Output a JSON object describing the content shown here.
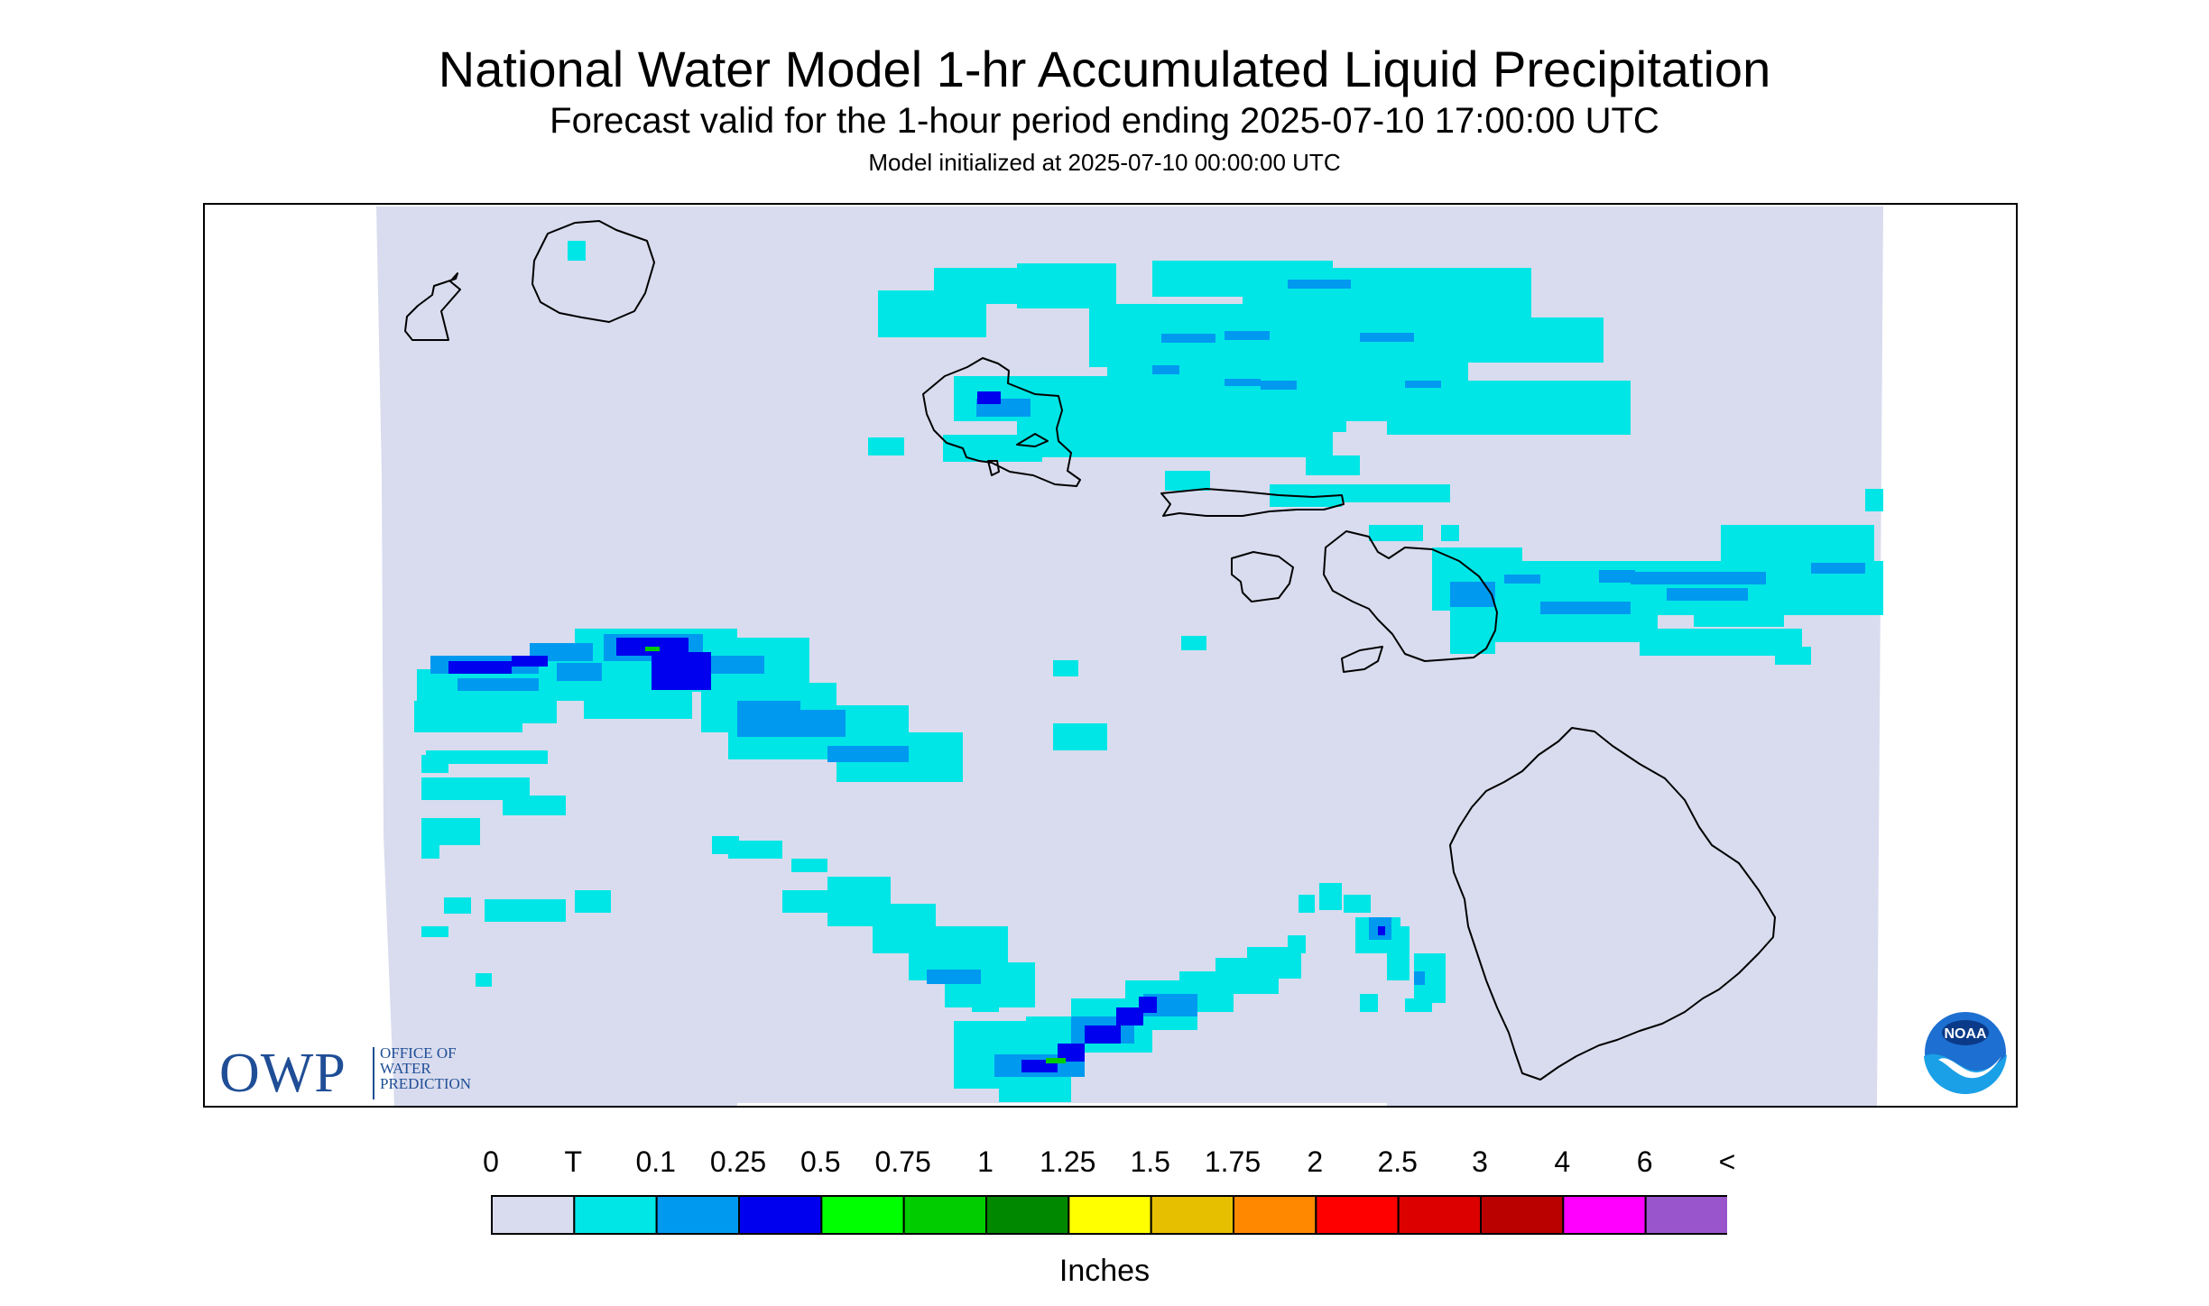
{
  "header": {
    "title": "National Water Model 1-hr Accumulated Liquid Precipitation",
    "subtitle": "Forecast valid for the 1-hour period ending 2025-07-10 17:00:00 UTC",
    "init_line": "Model initialized at 2025-07-10 00:00:00 UTC"
  },
  "map": {
    "region": "Hawaiian Islands",
    "background_color": "#d9dcee",
    "coastline_color": "#000000"
  },
  "logos": {
    "owp_mark": "OWP",
    "owp_text_line1": "OFFICE OF",
    "owp_text_line2": "WATER",
    "owp_text_line3": "PREDICTION",
    "noaa_text": "NOAA"
  },
  "legend": {
    "unit_label": "Inches",
    "tick_labels": [
      "0",
      "T",
      "0.1",
      "0.25",
      "0.5",
      "0.75",
      "1",
      "1.25",
      "1.5",
      "1.75",
      "2",
      "2.5",
      "3",
      "4",
      "6",
      "<"
    ],
    "colors": [
      "#d9dcee",
      "#00e6e6",
      "#0099f0",
      "#0000ee",
      "#00ff00",
      "#00cc00",
      "#008800",
      "#ffff00",
      "#e6c000",
      "#ff8800",
      "#ff0000",
      "#dd0000",
      "#bb0000",
      "#ff00ff",
      "#9955cc"
    ]
  }
}
